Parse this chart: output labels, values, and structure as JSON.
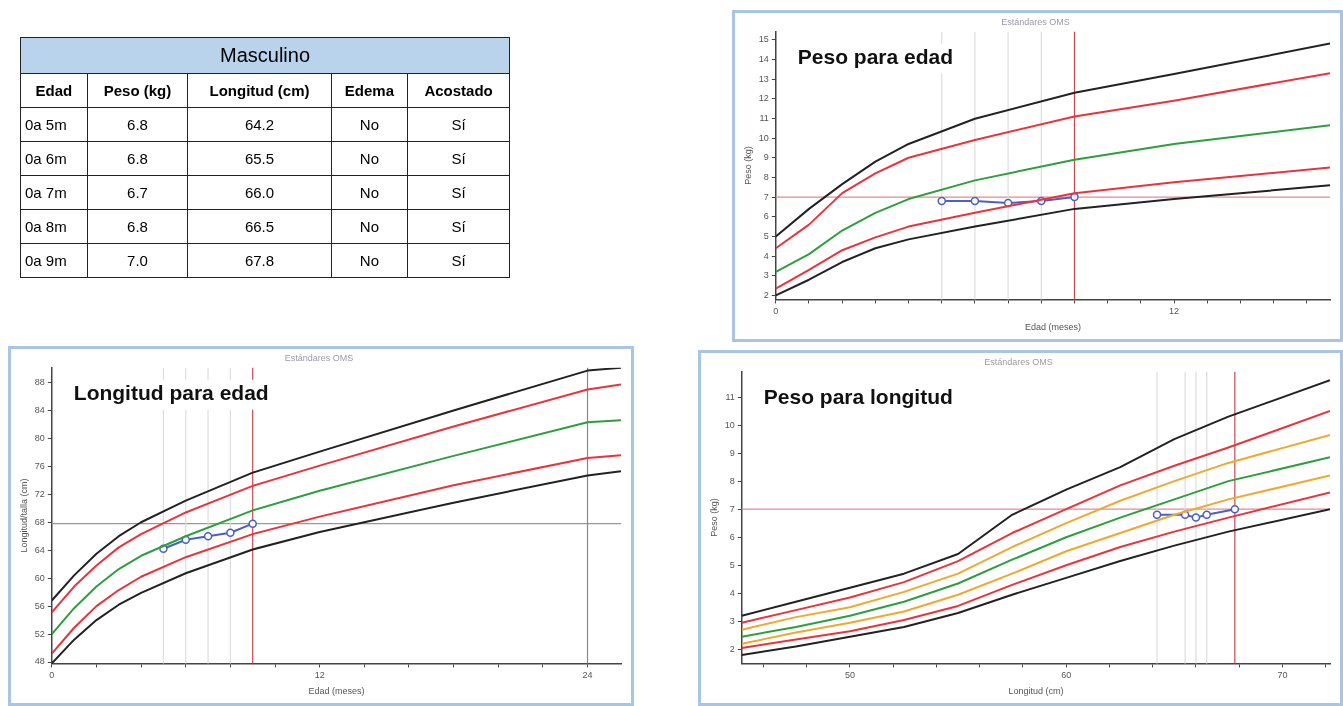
{
  "chart_data": [
    {
      "type": "other",
      "title": "Masculino",
      "categories": [
        "Edad",
        "Peso (kg)",
        "Longitud (cm)",
        "Edema",
        "Acostado"
      ],
      "annotations": [
        "0a 5m",
        "6.8",
        "64.2",
        "No",
        "Sí",
        "0a 6m",
        "6.8",
        "65.5",
        "No",
        "Sí",
        "0a 7m",
        "6.7",
        "66.0",
        "No",
        "Sí",
        "0a 8m",
        "6.8",
        "66.5",
        "No",
        "Sí",
        "0a 9m",
        "7.0",
        "67.8",
        "No",
        "Sí"
      ]
    },
    {
      "type": "line",
      "title": "Peso para edad",
      "subtitle": "Estándares OMS",
      "xlabel": "Edad (meses)",
      "ylabel": "Peso (kg)",
      "marker": "none",
      "x": [
        0,
        1,
        2,
        3,
        4,
        6,
        9,
        12,
        16.7
      ],
      "xlim": [
        0,
        16.7
      ],
      "ylim": [
        1.8,
        15.4
      ],
      "xticks": [
        0,
        {
          "value": 1,
          "label": null
        },
        {
          "value": 2,
          "label": null
        },
        {
          "value": 3,
          "label": null
        },
        {
          "value": 4,
          "label": null
        },
        {
          "value": 5,
          "label": null
        },
        {
          "value": 6,
          "label": null
        },
        {
          "value": 7,
          "label": null
        },
        {
          "value": 8,
          "label": null
        },
        {
          "value": 9,
          "label": null
        },
        {
          "value": 10,
          "label": null
        },
        {
          "value": 11,
          "label": null
        },
        12,
        {
          "value": 13,
          "label": null
        },
        {
          "value": 14,
          "label": null
        },
        {
          "value": 15,
          "label": null
        },
        {
          "value": 16,
          "label": null
        }
      ],
      "yticks": [
        2,
        3,
        4,
        5,
        6,
        7,
        8,
        9,
        10,
        11,
        12,
        13,
        14,
        15
      ],
      "series": [
        {
          "color": "#222222",
          "values": [
            5.0,
            6.4,
            7.66,
            8.8,
            9.7,
            10.98,
            12.3,
            13.25,
            14.8
          ]
        },
        {
          "color": "#e8343c",
          "values": [
            4.4,
            5.6,
            7.2,
            8.2,
            9.0,
            9.9,
            11.1,
            11.9,
            13.3
          ]
        },
        {
          "color": "#2e9e3e",
          "values": [
            3.2,
            4.1,
            5.3,
            6.2,
            6.9,
            7.85,
            8.9,
            9.7,
            10.65
          ]
        },
        {
          "color": "#e8343c",
          "values": [
            2.35,
            3.3,
            4.3,
            4.95,
            5.5,
            6.2,
            7.2,
            7.75,
            8.5
          ]
        },
        {
          "color": "#222222",
          "values": [
            2.0,
            2.8,
            3.7,
            4.4,
            4.85,
            5.5,
            6.4,
            6.9,
            7.6
          ]
        },
        {
          "color": "#4a5fc8",
          "marker": "circle",
          "x": [
            5,
            6,
            7,
            8,
            9
          ],
          "values": [
            6.8,
            6.8,
            6.7,
            6.8,
            7.0
          ]
        }
      ],
      "ref_lines": [
        {
          "axis": "y",
          "value": 7,
          "color": "#e88a90"
        },
        {
          "axis": "x",
          "value": 9,
          "color": "#c84850"
        },
        {
          "axis": "x",
          "value": 5,
          "color": "#dddddd"
        },
        {
          "axis": "x",
          "value": 6,
          "color": "#dddddd"
        },
        {
          "axis": "x",
          "value": 7,
          "color": "#dddddd"
        },
        {
          "axis": "x",
          "value": 8,
          "color": "#dddddd"
        }
      ]
    },
    {
      "type": "line",
      "title": "Longitud para edad",
      "subtitle": "Estándares OMS",
      "xlabel": "Edad (meses)",
      "ylabel": "Longitud/talla (cm)",
      "marker": "none",
      "x": [
        0,
        1,
        2,
        3,
        4,
        6,
        9,
        12,
        18,
        24,
        25.5
      ],
      "xlim": [
        0,
        25.5
      ],
      "ylim": [
        47.8,
        90.1
      ],
      "xticks": [
        0,
        {
          "value": 2,
          "label": null
        },
        {
          "value": 4,
          "label": null
        },
        {
          "value": 6,
          "label": null
        },
        {
          "value": 8,
          "label": null
        },
        {
          "value": 10,
          "label": null
        },
        12,
        {
          "value": 14,
          "label": null
        },
        {
          "value": 16,
          "label": null
        },
        {
          "value": 18,
          "label": null
        },
        {
          "value": 20,
          "label": null
        },
        {
          "value": 22,
          "label": null
        },
        24
      ],
      "yticks": [
        48,
        52,
        56,
        60,
        64,
        68,
        72,
        76,
        80,
        84,
        88
      ],
      "series": [
        {
          "color": "#222222",
          "values": [
            56.8,
            60.4,
            63.5,
            66.0,
            68.0,
            71.1,
            75.1,
            78.1,
            84.0,
            89.7,
            90.1
          ]
        },
        {
          "color": "#e8343c",
          "values": [
            55.1,
            58.8,
            61.8,
            64.4,
            66.3,
            69.4,
            73.2,
            76.1,
            81.7,
            87.0,
            87.7
          ]
        },
        {
          "color": "#2e9e3e",
          "values": [
            52.0,
            55.7,
            58.8,
            61.3,
            63.2,
            66.0,
            69.7,
            72.5,
            77.5,
            82.3,
            82.6
          ]
        },
        {
          "color": "#e8343c",
          "values": [
            49.2,
            52.9,
            56.0,
            58.3,
            60.2,
            63.0,
            66.3,
            68.8,
            73.3,
            77.2,
            77.6
          ]
        },
        {
          "color": "#222222",
          "values": [
            47.8,
            51.2,
            54.0,
            56.2,
            57.9,
            60.7,
            64.1,
            66.6,
            70.8,
            74.7,
            75.3
          ]
        },
        {
          "color": "#4a5fc8",
          "marker": "circle",
          "x": [
            5,
            6,
            7,
            8,
            9
          ],
          "values": [
            64.2,
            65.5,
            66.0,
            66.5,
            67.8
          ]
        }
      ],
      "ref_lines": [
        {
          "axis": "y",
          "value": 67.8,
          "color": "#999999"
        },
        {
          "axis": "x",
          "value": 9,
          "color": "#c84850"
        },
        {
          "axis": "x",
          "value": 24,
          "color": "#888888"
        },
        {
          "axis": "x",
          "value": 5,
          "color": "#dddddd"
        },
        {
          "axis": "x",
          "value": 6,
          "color": "#dddddd"
        },
        {
          "axis": "x",
          "value": 7,
          "color": "#dddddd"
        },
        {
          "axis": "x",
          "value": 8,
          "color": "#dddddd"
        }
      ]
    },
    {
      "type": "line",
      "title": "Peso para longitud",
      "subtitle": "Estándares OMS",
      "xlabel": "Longitud (cm)",
      "ylabel": "Peso (kg)",
      "marker": "none",
      "x": [
        45,
        47.5,
        50,
        52.5,
        55,
        57.5,
        60,
        62.5,
        65,
        67.5,
        72.2
      ],
      "xlim": [
        45,
        72.2
      ],
      "ylim": [
        1.5,
        11.9
      ],
      "xticks": [
        {
          "value": 46,
          "label": null
        },
        {
          "value": 48,
          "label": null
        },
        50,
        {
          "value": 52,
          "label": null
        },
        {
          "value": 54,
          "label": null
        },
        {
          "value": 56,
          "label": null
        },
        {
          "value": 58,
          "label": null
        },
        60,
        {
          "value": 62,
          "label": null
        },
        {
          "value": 64,
          "label": null
        },
        {
          "value": 66,
          "label": null
        },
        {
          "value": 68,
          "label": null
        },
        70,
        {
          "value": 72,
          "label": null
        }
      ],
      "yticks": [
        2,
        3,
        4,
        5,
        6,
        7,
        8,
        9,
        10,
        11
      ],
      "series": [
        {
          "color": "#222222",
          "values": [
            3.2,
            3.7,
            4.2,
            4.7,
            5.4,
            6.8,
            7.7,
            8.5,
            9.5,
            10.3,
            11.6
          ]
        },
        {
          "color": "#e8343c",
          "values": [
            2.95,
            3.4,
            3.85,
            4.4,
            5.15,
            6.15,
            7.0,
            7.85,
            8.55,
            9.2,
            10.5
          ]
        },
        {
          "color": "#f0a830",
          "values": [
            2.7,
            3.15,
            3.5,
            4.05,
            4.7,
            5.65,
            6.5,
            7.3,
            8.0,
            8.65,
            9.65
          ]
        },
        {
          "color": "#2e9e3e",
          "values": [
            2.45,
            2.8,
            3.2,
            3.7,
            4.35,
            5.2,
            6.0,
            6.7,
            7.35,
            8.0,
            8.85
          ]
        },
        {
          "color": "#f0a830",
          "values": [
            2.2,
            2.6,
            2.95,
            3.35,
            3.95,
            4.7,
            5.5,
            6.15,
            6.8,
            7.35,
            8.2
          ]
        },
        {
          "color": "#e8343c",
          "values": [
            2.05,
            2.35,
            2.65,
            3.05,
            3.55,
            4.3,
            5.0,
            5.65,
            6.2,
            6.7,
            7.6
          ]
        },
        {
          "color": "#222222",
          "values": [
            1.8,
            2.1,
            2.45,
            2.8,
            3.3,
            3.95,
            4.55,
            5.15,
            5.7,
            6.2,
            7.0
          ]
        },
        {
          "color": "#4a5fc8",
          "marker": "circle",
          "x": [
            64.2,
            65.5,
            66.0,
            66.5,
            67.8
          ],
          "values": [
            6.8,
            6.8,
            6.7,
            6.8,
            7.0
          ]
        }
      ],
      "ref_lines": [
        {
          "axis": "y",
          "value": 7,
          "color": "#e88a90"
        },
        {
          "axis": "x",
          "value": 67.8,
          "color": "#c84850"
        },
        {
          "axis": "x",
          "value": 64.2,
          "color": "#dddddd"
        },
        {
          "axis": "x",
          "value": 65.5,
          "color": "#dddddd"
        },
        {
          "axis": "x",
          "value": 66.0,
          "color": "#dddddd"
        },
        {
          "axis": "x",
          "value": 66.5,
          "color": "#dddddd"
        }
      ]
    }
  ]
}
